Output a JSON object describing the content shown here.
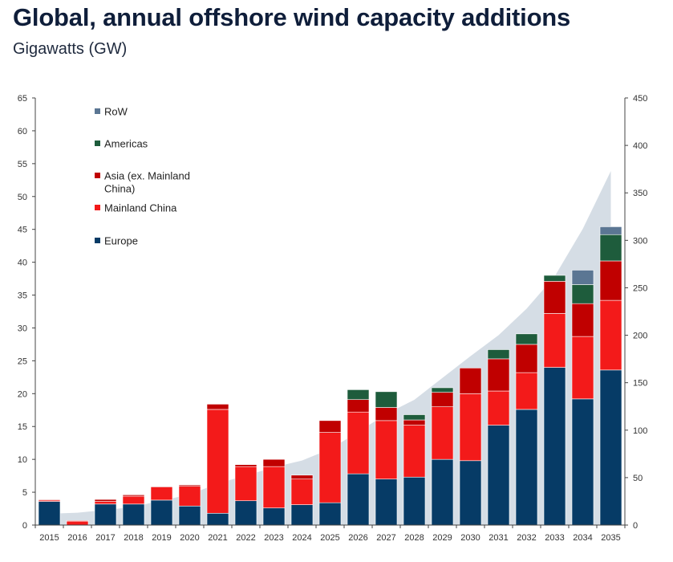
{
  "title": "Global, annual offshore wind capacity additions",
  "subtitle": "Gigawatts (GW)",
  "colors": {
    "Europe": "#063b66",
    "Mainland China": "#f31a1a",
    "Asia (ex. Mainland China)": "#c00000",
    "Americas": "#1e5c3c",
    "RoW": "#5b7693",
    "cumulative_area": "#d5dde5"
  },
  "chart_data": {
    "type": "bar",
    "stacked": true,
    "title": "Global, annual offshore wind capacity additions",
    "subtitle": "Gigawatts (GW)",
    "categories": [
      "2015",
      "2016",
      "2017",
      "2018",
      "2019",
      "2020",
      "2021",
      "2022",
      "2023",
      "2024",
      "2025",
      "2026",
      "2027",
      "2028",
      "2029",
      "2030",
      "2031",
      "2032",
      "2033",
      "2034",
      "2035"
    ],
    "ylim": [
      0,
      65
    ],
    "yticks": [
      0,
      5,
      10,
      15,
      20,
      25,
      30,
      35,
      40,
      45,
      50,
      55,
      60,
      65
    ],
    "y2lim": [
      0,
      450
    ],
    "y2ticks": [
      0,
      50,
      100,
      150,
      200,
      250,
      300,
      350,
      400,
      450
    ],
    "legend_placement": "top-left",
    "legend_order": [
      "RoW",
      "Americas",
      "Asia (ex. Mainland China)",
      "Mainland China",
      "Europe"
    ],
    "series": [
      {
        "name": "Europe",
        "values": [
          3.6,
          0,
          3.2,
          3.2,
          3.8,
          2.9,
          1.8,
          3.7,
          2.6,
          3.1,
          3.4,
          7.8,
          7.0,
          7.3,
          10.0,
          9.8,
          15.2,
          17.6,
          24.0,
          19.2,
          23.6
        ]
      },
      {
        "name": "Mainland China",
        "values": [
          0.2,
          0.6,
          0.4,
          1.2,
          2.0,
          3.0,
          15.8,
          5.2,
          6.3,
          3.9,
          10.7,
          9.4,
          8.9,
          7.9,
          8.0,
          10.2,
          5.2,
          5.6,
          8.2,
          9.5,
          10.6
        ]
      },
      {
        "name": "Asia (ex. Mainland China)",
        "values": [
          0.1,
          0.1,
          0.3,
          0.2,
          0.1,
          0.2,
          0.8,
          0.3,
          1.1,
          0.6,
          1.8,
          1.9,
          2.0,
          0.8,
          2.2,
          3.9,
          4.9,
          4.3,
          4.9,
          5.0,
          6.0
        ]
      },
      {
        "name": "Americas",
        "values": [
          0,
          0,
          0,
          0,
          0,
          0,
          0,
          0,
          0,
          0,
          0,
          1.5,
          2.4,
          0.8,
          0.7,
          0,
          1.4,
          1.6,
          0.9,
          2.9,
          4.0
        ]
      },
      {
        "name": "RoW",
        "values": [
          0,
          0,
          0,
          0,
          0,
          0,
          0,
          0,
          0,
          0,
          0,
          0,
          0,
          0,
          0,
          0,
          0,
          0,
          0,
          2.2,
          1.2
        ]
      },
      {
        "name": "",
        "type": "area",
        "axis": "right",
        "values": [
          12,
          13,
          16,
          19,
          26,
          32,
          44,
          52,
          61,
          68,
          80,
          98,
          117,
          132,
          155,
          178,
          200,
          228,
          262,
          312,
          373
        ]
      }
    ]
  }
}
